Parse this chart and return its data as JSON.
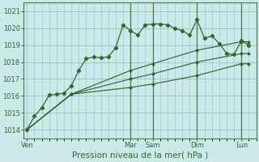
{
  "background_color": "#cce8e8",
  "grid_color": "#99cccc",
  "line_color": "#2d6b2d",
  "marker_color": "#2d6b2d",
  "ylim": [
    1013.5,
    1021.5
  ],
  "xlabel": "Pression niveau de la mer( hPa )",
  "xlabel_fontsize": 7.5,
  "ytick_fontsize": 6.0,
  "xtick_fontsize": 6.0,
  "day_labels": [
    "Ven",
    "Mar",
    "Sam",
    "Dim",
    "Lun"
  ],
  "day_positions": [
    0,
    14,
    17,
    23,
    29
  ],
  "vline_positions": [
    14,
    17,
    23,
    29
  ],
  "xlim": [
    -0.5,
    31
  ],
  "series": [
    {
      "x": [
        0,
        1,
        2,
        3,
        4,
        5,
        6,
        7,
        8,
        9,
        10,
        11,
        12,
        13,
        14,
        15,
        16,
        17,
        18,
        19,
        20,
        21,
        22,
        23,
        24,
        25,
        26,
        27,
        28,
        29,
        30
      ],
      "y": [
        1014.0,
        1014.8,
        1015.3,
        1016.05,
        1016.1,
        1016.15,
        1016.6,
        1017.5,
        1018.2,
        1018.3,
        1018.25,
        1018.3,
        1018.85,
        1020.2,
        1019.85,
        1019.6,
        1020.2,
        1020.25,
        1020.25,
        1020.2,
        1020.0,
        1019.85,
        1019.6,
        1020.5,
        1019.4,
        1019.55,
        1019.1,
        1018.5,
        1018.45,
        1019.25,
        1019.0
      ]
    },
    {
      "x": [
        0,
        6,
        14,
        17,
        23,
        29,
        30
      ],
      "y": [
        1014.0,
        1016.1,
        1017.5,
        1017.9,
        1018.7,
        1019.2,
        1019.2
      ]
    },
    {
      "x": [
        0,
        6,
        14,
        17,
        23,
        29,
        30
      ],
      "y": [
        1014.0,
        1016.1,
        1017.0,
        1017.3,
        1018.0,
        1018.5,
        1018.5
      ]
    },
    {
      "x": [
        0,
        6,
        14,
        17,
        23,
        29,
        30
      ],
      "y": [
        1014.0,
        1016.1,
        1016.5,
        1016.7,
        1017.2,
        1017.9,
        1017.9
      ]
    }
  ],
  "yticks": [
    1014,
    1015,
    1016,
    1017,
    1018,
    1019,
    1020,
    1021
  ]
}
